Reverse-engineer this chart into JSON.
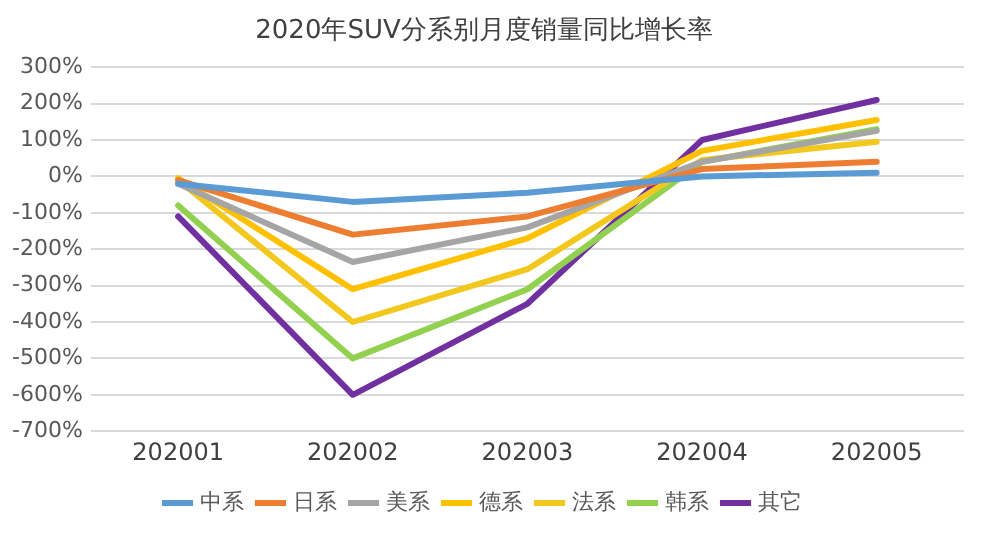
{
  "chart_data": {
    "type": "line",
    "title": "2020年SUV分系别月度销量同比增长率",
    "categories": [
      "202001",
      "202002",
      "202003",
      "202004",
      "202005"
    ],
    "series": [
      {
        "name": "中系",
        "color": "#5b9bd5",
        "values": [
          -20,
          -70,
          -45,
          0,
          10
        ]
      },
      {
        "name": "日系",
        "color": "#ed7d31",
        "values": [
          -10,
          -160,
          -110,
          20,
          40
        ]
      },
      {
        "name": "美系",
        "color": "#a5a5a5",
        "values": [
          -20,
          -235,
          -140,
          40,
          125
        ]
      },
      {
        "name": "德系",
        "color": "#ffc000",
        "values": [
          -5,
          -310,
          -170,
          70,
          155
        ]
      },
      {
        "name": "法系",
        "color": "#f2c81e",
        "values": [
          -10,
          -400,
          -255,
          45,
          95
        ]
      },
      {
        "name": "韩系",
        "color": "#92d050",
        "values": [
          -80,
          -500,
          -310,
          40,
          130
        ]
      },
      {
        "name": "其它",
        "color": "#7030a0",
        "values": [
          -110,
          -600,
          -350,
          100,
          210
        ]
      }
    ],
    "ylim": [
      -700,
      300
    ],
    "yticks": [
      {
        "value": -700,
        "label": "-700%"
      },
      {
        "value": -600,
        "label": "-600%"
      },
      {
        "value": -500,
        "label": "-500%"
      },
      {
        "value": -400,
        "label": "-400%"
      },
      {
        "value": -300,
        "label": "-300%"
      },
      {
        "value": -200,
        "label": "-200%"
      },
      {
        "value": -100,
        "label": "-100%"
      },
      {
        "value": 0,
        "label": "0%"
      },
      {
        "value": 100,
        "label": "100%"
      },
      {
        "value": 200,
        "label": "200%"
      },
      {
        "value": 300,
        "label": "300%"
      }
    ],
    "grid": "y",
    "legend": "bottom",
    "marker": "none",
    "line_style": "solid"
  }
}
